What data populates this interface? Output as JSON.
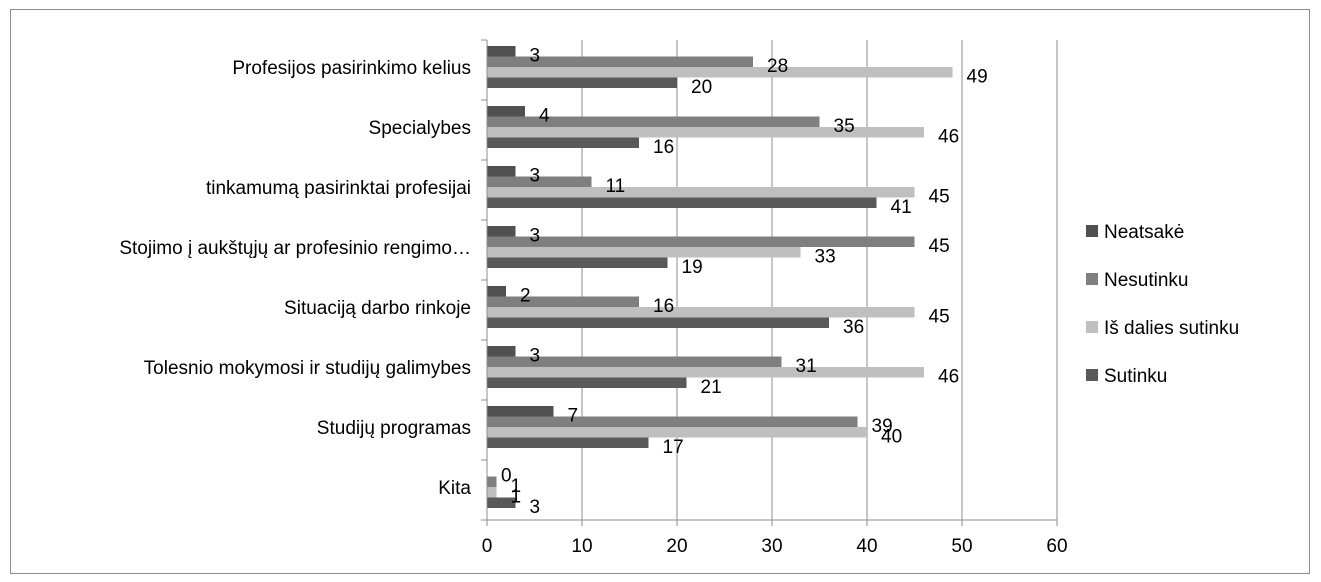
{
  "chart_data": {
    "type": "bar",
    "orientation": "horizontal",
    "title": "",
    "xlabel": "",
    "ylabel": "",
    "xlim": [
      0,
      60
    ],
    "x_ticks": [
      0,
      10,
      20,
      30,
      40,
      50,
      60
    ],
    "grid": "vertical",
    "legend_position": "right",
    "categories": [
      "Profesijos pasirinkimo kelius",
      "Specialybes",
      "tinkamumą pasirinktai profesijai",
      "Stojimo į aukštųjų ar profesinio rengimo…",
      "Situaciją darbo rinkoje",
      "Tolesnio mokymosi ir studijų galimybes",
      "Studijų programas",
      "Kita"
    ],
    "series": [
      {
        "name": "Neatsakė",
        "color": "#505050",
        "values": [
          3,
          4,
          3,
          3,
          2,
          3,
          7,
          0
        ]
      },
      {
        "name": "Nesutinku",
        "color": "#7f7f7f",
        "values": [
          28,
          35,
          11,
          45,
          16,
          31,
          39,
          1
        ]
      },
      {
        "name": "Iš dalies sutinku",
        "color": "#bfbfbf",
        "values": [
          49,
          46,
          45,
          33,
          45,
          46,
          40,
          1
        ]
      },
      {
        "name": "Sutinku",
        "color": "#595959",
        "values": [
          20,
          16,
          41,
          19,
          36,
          21,
          17,
          3
        ]
      }
    ]
  }
}
